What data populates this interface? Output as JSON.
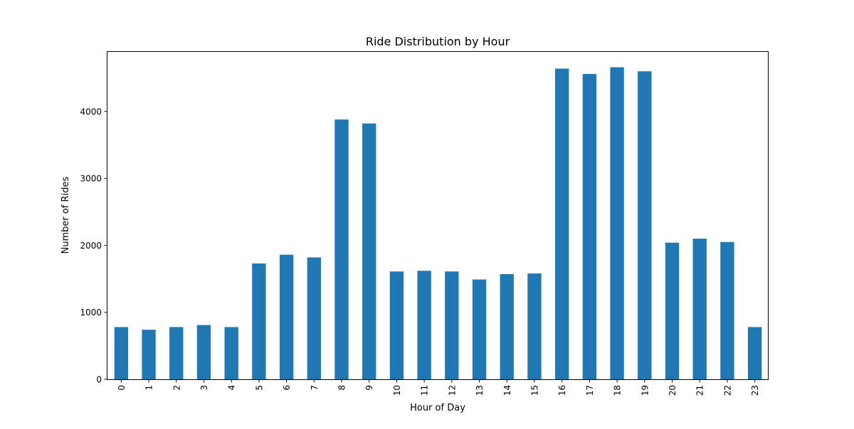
{
  "chart_data": {
    "type": "bar",
    "title": "Ride Distribution by Hour",
    "xlabel": "Hour of Day",
    "ylabel": "Number of Rides",
    "categories": [
      "0",
      "1",
      "2",
      "3",
      "4",
      "5",
      "6",
      "7",
      "8",
      "9",
      "10",
      "11",
      "12",
      "13",
      "14",
      "15",
      "16",
      "17",
      "18",
      "19",
      "20",
      "21",
      "22",
      "23"
    ],
    "values": [
      780,
      740,
      780,
      810,
      780,
      1730,
      1860,
      1820,
      3880,
      3820,
      1610,
      1620,
      1610,
      1490,
      1570,
      1580,
      4640,
      4560,
      4660,
      4600,
      2040,
      2100,
      2050,
      780
    ],
    "ylim": [
      0,
      4890
    ],
    "yticks": [
      0,
      1000,
      2000,
      3000,
      4000
    ],
    "ytick_labels": [
      "0",
      "1000",
      "2000",
      "3000",
      "4000"
    ],
    "x_tick_rotation": "vertical",
    "grid": false,
    "legend": "none",
    "bar_color": "#1f77b4"
  }
}
